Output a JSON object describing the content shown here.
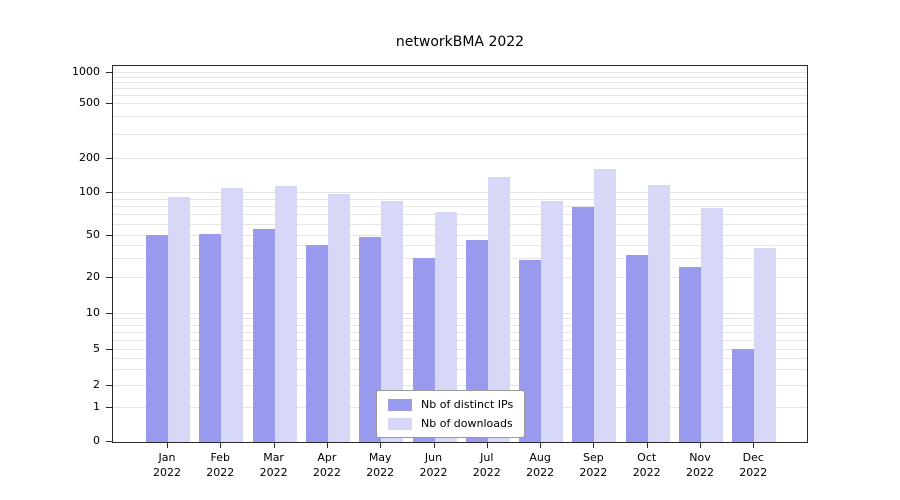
{
  "chart_data": {
    "type": "bar",
    "title": "networkBMA 2022",
    "categories": [
      "Jan",
      "Feb",
      "Mar",
      "Apr",
      "May",
      "Jun",
      "Jul",
      "Aug",
      "Sep",
      "Oct",
      "Nov",
      "Dec"
    ],
    "year": "2022",
    "series": [
      {
        "name": "Nb of distinct IPs",
        "color": "#9999ee",
        "values": [
          50,
          51,
          55,
          40,
          48,
          30,
          45,
          29,
          78,
          32,
          25,
          5
        ]
      },
      {
        "name": "Nb of downloads",
        "color": "#d7d7f8",
        "values": [
          92,
          108,
          112,
          97,
          87,
          72,
          135,
          87,
          160,
          116,
          77,
          38
        ]
      }
    ],
    "yticks": [
      0,
      1,
      2,
      5,
      10,
      20,
      50,
      100,
      200,
      500,
      1000
    ],
    "ylim": [
      0,
      1000
    ],
    "scale": "symlog",
    "grid": true,
    "legend_position": "bottom-center"
  }
}
